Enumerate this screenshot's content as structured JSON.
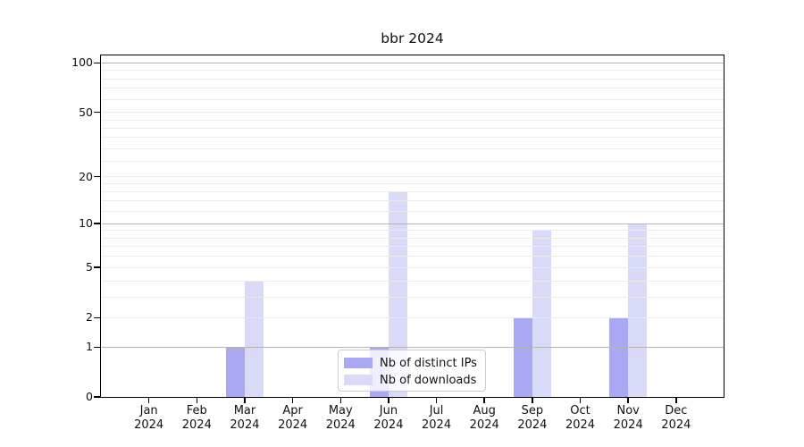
{
  "title": "bbr 2024",
  "chart_data": {
    "type": "bar",
    "title": "bbr 2024",
    "categories": [
      "Jan 2024",
      "Feb 2024",
      "Mar 2024",
      "Apr 2024",
      "May 2024",
      "Jun 2024",
      "Jul 2024",
      "Aug 2024",
      "Sep 2024",
      "Oct 2024",
      "Nov 2024",
      "Dec 2024"
    ],
    "series": [
      {
        "name": "Nb of distinct IPs",
        "color": "#a9a9f3",
        "values": [
          0,
          0,
          1,
          0,
          0,
          1,
          0,
          0,
          2,
          0,
          2,
          0
        ]
      },
      {
        "name": "Nb of downloads",
        "color": "#d9d9f8",
        "values": [
          0,
          0,
          4,
          0,
          0,
          16,
          0,
          0,
          9,
          0,
          10,
          0
        ]
      }
    ],
    "xlabel": "",
    "ylabel": "",
    "yscale": "log1p",
    "ylim": [
      0,
      110
    ],
    "yticks": [
      0,
      1,
      2,
      5,
      10,
      20,
      50,
      100
    ],
    "major_gridlines": [
      1,
      10,
      100
    ],
    "minor_gridlines": [
      2,
      3,
      4,
      5,
      6,
      7,
      8,
      9,
      12,
      14,
      16,
      18,
      20,
      25,
      30,
      35,
      40,
      45,
      50,
      60,
      70,
      80,
      90
    ],
    "grid": true,
    "legend_position": "lower center"
  },
  "colors": {
    "major_grid": "#b5b5b5",
    "minor_grid": "#eaeaea",
    "axis": "#000000",
    "text": "#111111",
    "legend_border": "#cccccc"
  }
}
